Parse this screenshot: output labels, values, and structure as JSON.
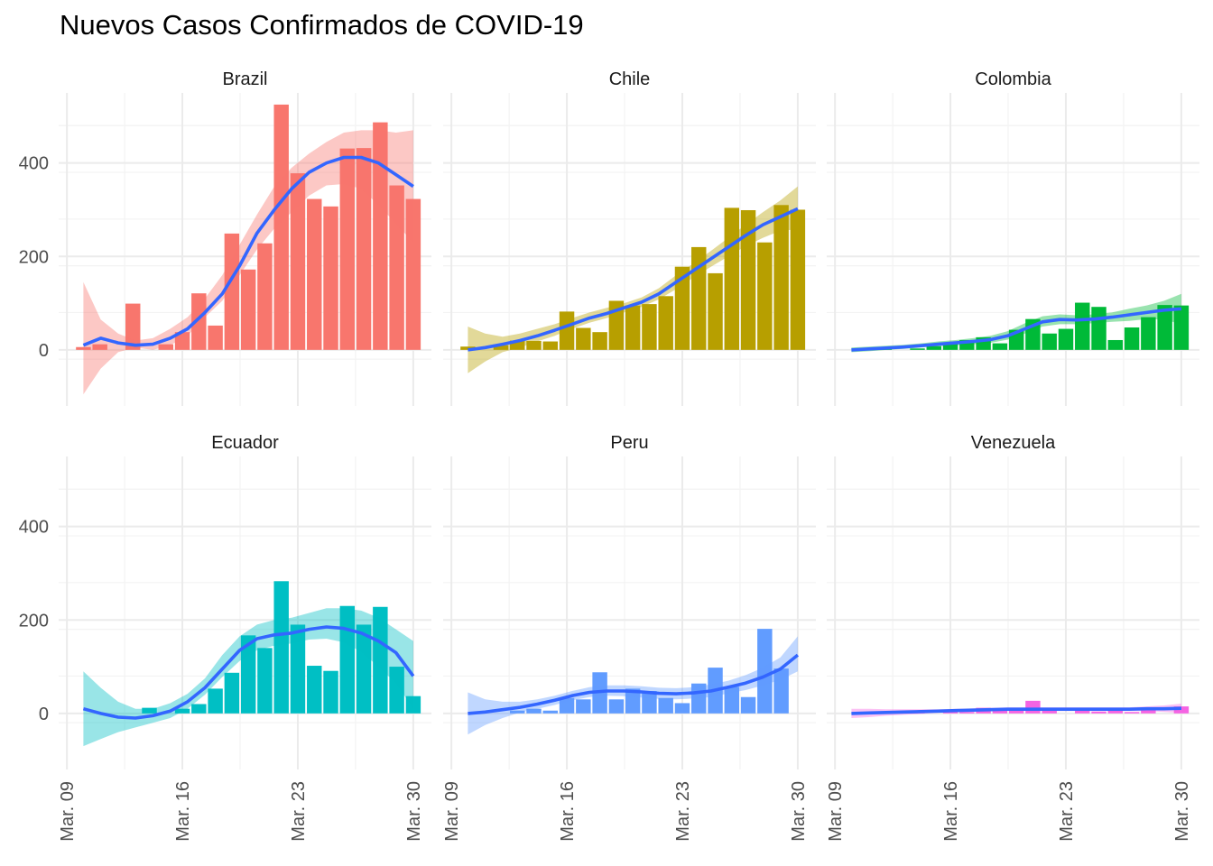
{
  "title": "Nuevos Casos Confirmados de COVID-19",
  "colors": {
    "Brazil": "#F8766D",
    "Chile": "#B79F00",
    "Colombia": "#00BA38",
    "Ecuador": "#00BFC4",
    "Peru": "#619CFF",
    "Venezuela": "#F564E3",
    "smooth_line": "#3366FF",
    "grid": "#ebebeb"
  },
  "chart_data": {
    "type": "bar",
    "facet_layout": "2x3",
    "x_dates": [
      "2020-03-09",
      "2020-03-10",
      "2020-03-11",
      "2020-03-12",
      "2020-03-13",
      "2020-03-14",
      "2020-03-15",
      "2020-03-16",
      "2020-03-17",
      "2020-03-18",
      "2020-03-19",
      "2020-03-20",
      "2020-03-21",
      "2020-03-22",
      "2020-03-23",
      "2020-03-24",
      "2020-03-25",
      "2020-03-26",
      "2020-03-27",
      "2020-03-28",
      "2020-03-29",
      "2020-03-30"
    ],
    "x_tick_labels": [
      "Mar. 09",
      "Mar. 16",
      "Mar. 23",
      "Mar. 30"
    ],
    "x_tick_dates": [
      "2020-03-09",
      "2020-03-16",
      "2020-03-23",
      "2020-03-30"
    ],
    "y_ticks": [
      0,
      200,
      400
    ],
    "ylim": [
      -120,
      550
    ],
    "grid": true,
    "legend": "none",
    "smooth": "loess with confidence band",
    "panels": [
      {
        "name": "Brazil",
        "values": [
          0,
          6,
          12,
          0,
          99,
          0,
          12,
          38,
          121,
          52,
          249,
          172,
          228,
          525,
          378,
          323,
          307,
          431,
          432,
          487,
          352,
          323
        ],
        "smooth": [
          10,
          25,
          15,
          10,
          12,
          25,
          45,
          80,
          120,
          180,
          250,
          300,
          345,
          380,
          400,
          412,
          412,
          400,
          375,
          350
        ],
        "band_low": [
          -95,
          -40,
          -5,
          5,
          0,
          10,
          30,
          70,
          105,
          160,
          215,
          260,
          295,
          330,
          352,
          355,
          345,
          310,
          270,
          230
        ],
        "band_high": [
          145,
          65,
          35,
          20,
          25,
          45,
          70,
          110,
          160,
          225,
          290,
          350,
          390,
          420,
          445,
          465,
          470,
          470,
          465,
          470
        ]
      },
      {
        "name": "Chile",
        "values": [
          0,
          7,
          0,
          10,
          20,
          19,
          18,
          82,
          47,
          38,
          105,
          95,
          98,
          115,
          178,
          220,
          164,
          304,
          299,
          230,
          310,
          300
        ],
        "smooth": [
          0,
          5,
          12,
          20,
          30,
          42,
          55,
          68,
          78,
          90,
          102,
          120,
          145,
          170,
          195,
          220,
          245,
          268,
          285,
          302
        ],
        "band_low": [
          -50,
          -25,
          -5,
          5,
          18,
          30,
          45,
          58,
          68,
          80,
          92,
          108,
          130,
          155,
          178,
          200,
          222,
          240,
          255,
          258
        ],
        "band_high": [
          50,
          35,
          28,
          35,
          45,
          55,
          68,
          80,
          90,
          100,
          112,
          132,
          160,
          185,
          212,
          240,
          268,
          295,
          320,
          350
        ]
      },
      {
        "name": "Colombia",
        "values": [
          0,
          0,
          0,
          3,
          0,
          3,
          8,
          16,
          21,
          27,
          14,
          43,
          66,
          35,
          45,
          101,
          92,
          21,
          48,
          70,
          96,
          95
        ],
        "smooth": [
          0,
          2,
          4,
          6,
          9,
          12,
          15,
          18,
          22,
          30,
          45,
          60,
          65,
          64,
          66,
          70,
          75,
          80,
          85,
          88
        ],
        "band_low": [
          -5,
          -3,
          0,
          2,
          5,
          8,
          10,
          12,
          15,
          22,
          35,
          50,
          55,
          55,
          57,
          60,
          62,
          66,
          65,
          55
        ],
        "band_high": [
          5,
          7,
          9,
          11,
          14,
          18,
          21,
          25,
          30,
          40,
          57,
          72,
          76,
          74,
          76,
          80,
          88,
          95,
          105,
          120
        ]
      },
      {
        "name": "Ecuador",
        "values": [
          0,
          0,
          0,
          0,
          0,
          12,
          0,
          10,
          20,
          53,
          87,
          167,
          140,
          283,
          190,
          102,
          91,
          230,
          190,
          228,
          100,
          37
        ],
        "smooth": [
          10,
          0,
          -8,
          -10,
          -5,
          5,
          25,
          55,
          95,
          135,
          160,
          168,
          172,
          180,
          185,
          182,
          172,
          155,
          130,
          80
        ],
        "band_low": [
          -70,
          -55,
          -40,
          -30,
          -20,
          -10,
          10,
          40,
          78,
          112,
          135,
          145,
          150,
          158,
          160,
          152,
          132,
          100,
          65,
          10
        ],
        "band_high": [
          90,
          55,
          25,
          10,
          10,
          22,
          42,
          75,
          125,
          165,
          190,
          200,
          205,
          215,
          225,
          225,
          220,
          205,
          180,
          155
        ]
      },
      {
        "name": "Peru",
        "values": [
          0,
          0,
          0,
          0,
          6,
          10,
          6,
          33,
          30,
          88,
          30,
          53,
          48,
          33,
          22,
          64,
          98,
          57,
          35,
          181,
          96,
          0
        ],
        "smooth": [
          0,
          3,
          8,
          13,
          20,
          28,
          38,
          45,
          48,
          48,
          46,
          43,
          42,
          44,
          48,
          56,
          65,
          78,
          95,
          125
        ],
        "band_low": [
          -45,
          -25,
          -10,
          2,
          10,
          18,
          28,
          35,
          38,
          37,
          34,
          31,
          30,
          32,
          35,
          43,
          50,
          60,
          72,
          90
        ],
        "band_high": [
          45,
          30,
          25,
          25,
          30,
          38,
          48,
          56,
          60,
          60,
          58,
          55,
          54,
          56,
          62,
          70,
          82,
          98,
          120,
          165
        ]
      },
      {
        "name": "Venezuela",
        "values": [
          0,
          0,
          0,
          0,
          0,
          2,
          0,
          7,
          3,
          12,
          6,
          6,
          27,
          10,
          0,
          7,
          4,
          7,
          3,
          10,
          0,
          15
        ],
        "smooth": [
          0,
          1,
          2,
          3,
          4,
          5,
          6,
          7,
          8,
          9,
          9,
          9,
          9,
          9,
          9,
          9,
          9,
          10,
          10,
          11
        ],
        "band_low": [
          -10,
          -8,
          -5,
          -3,
          -1,
          1,
          2,
          3,
          4,
          5,
          5,
          5,
          5,
          5,
          5,
          5,
          5,
          5,
          3,
          1
        ],
        "band_high": [
          10,
          10,
          9,
          9,
          9,
          9,
          10,
          11,
          12,
          13,
          13,
          13,
          13,
          13,
          13,
          13,
          13,
          15,
          17,
          21
        ]
      }
    ]
  }
}
